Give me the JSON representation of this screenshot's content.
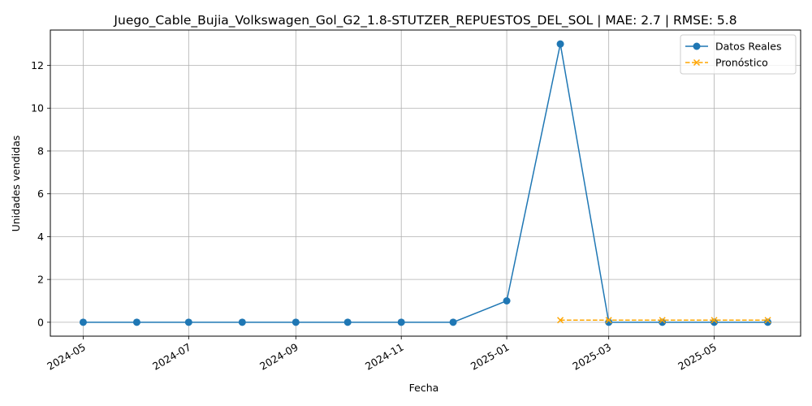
{
  "chart_data": {
    "type": "line",
    "title": "Juego_Cable_Bujia_Volkswagen_Gol_G2_1.8-STUTZER_REPUESTOS_DEL_SOL | MAE: 2.7 | RMSE: 5.8",
    "xlabel": "Fecha",
    "ylabel": "Unidades vendidas",
    "x_tick_labels": [
      "2024-05",
      "2024-07",
      "2024-09",
      "2024-11",
      "2025-01",
      "2025-03",
      "2025-05"
    ],
    "y_tick_labels": [
      "0",
      "2",
      "4",
      "6",
      "8",
      "10",
      "12"
    ],
    "y_ticks": [
      0,
      2,
      4,
      6,
      8,
      10,
      12
    ],
    "ylim": [
      -0.65,
      13.65
    ],
    "xlim": [
      "2024-04-12",
      "2025-06-20"
    ],
    "grid": true,
    "legend_position": "top-right",
    "series": [
      {
        "name": "Datos Reales",
        "color": "#1f77b4",
        "marker": "circle",
        "linestyle": "solid",
        "x": [
          "2024-05-01",
          "2024-06-01",
          "2024-07-01",
          "2024-08-01",
          "2024-09-01",
          "2024-10-01",
          "2024-11-01",
          "2024-12-01",
          "2025-01-01",
          "2025-02-01",
          "2025-03-01",
          "2025-04-01",
          "2025-05-01",
          "2025-06-01"
        ],
        "values": [
          0,
          0,
          0,
          0,
          0,
          0,
          0,
          0,
          1,
          13,
          0,
          0,
          0,
          0
        ]
      },
      {
        "name": "Pronóstico",
        "color": "#ffa500",
        "marker": "x",
        "linestyle": "dashed",
        "x": [
          "2025-02-01",
          "2025-03-01",
          "2025-04-01",
          "2025-05-01",
          "2025-06-01"
        ],
        "values": [
          0.1,
          0.1,
          0.1,
          0.1,
          0.1
        ]
      }
    ]
  }
}
